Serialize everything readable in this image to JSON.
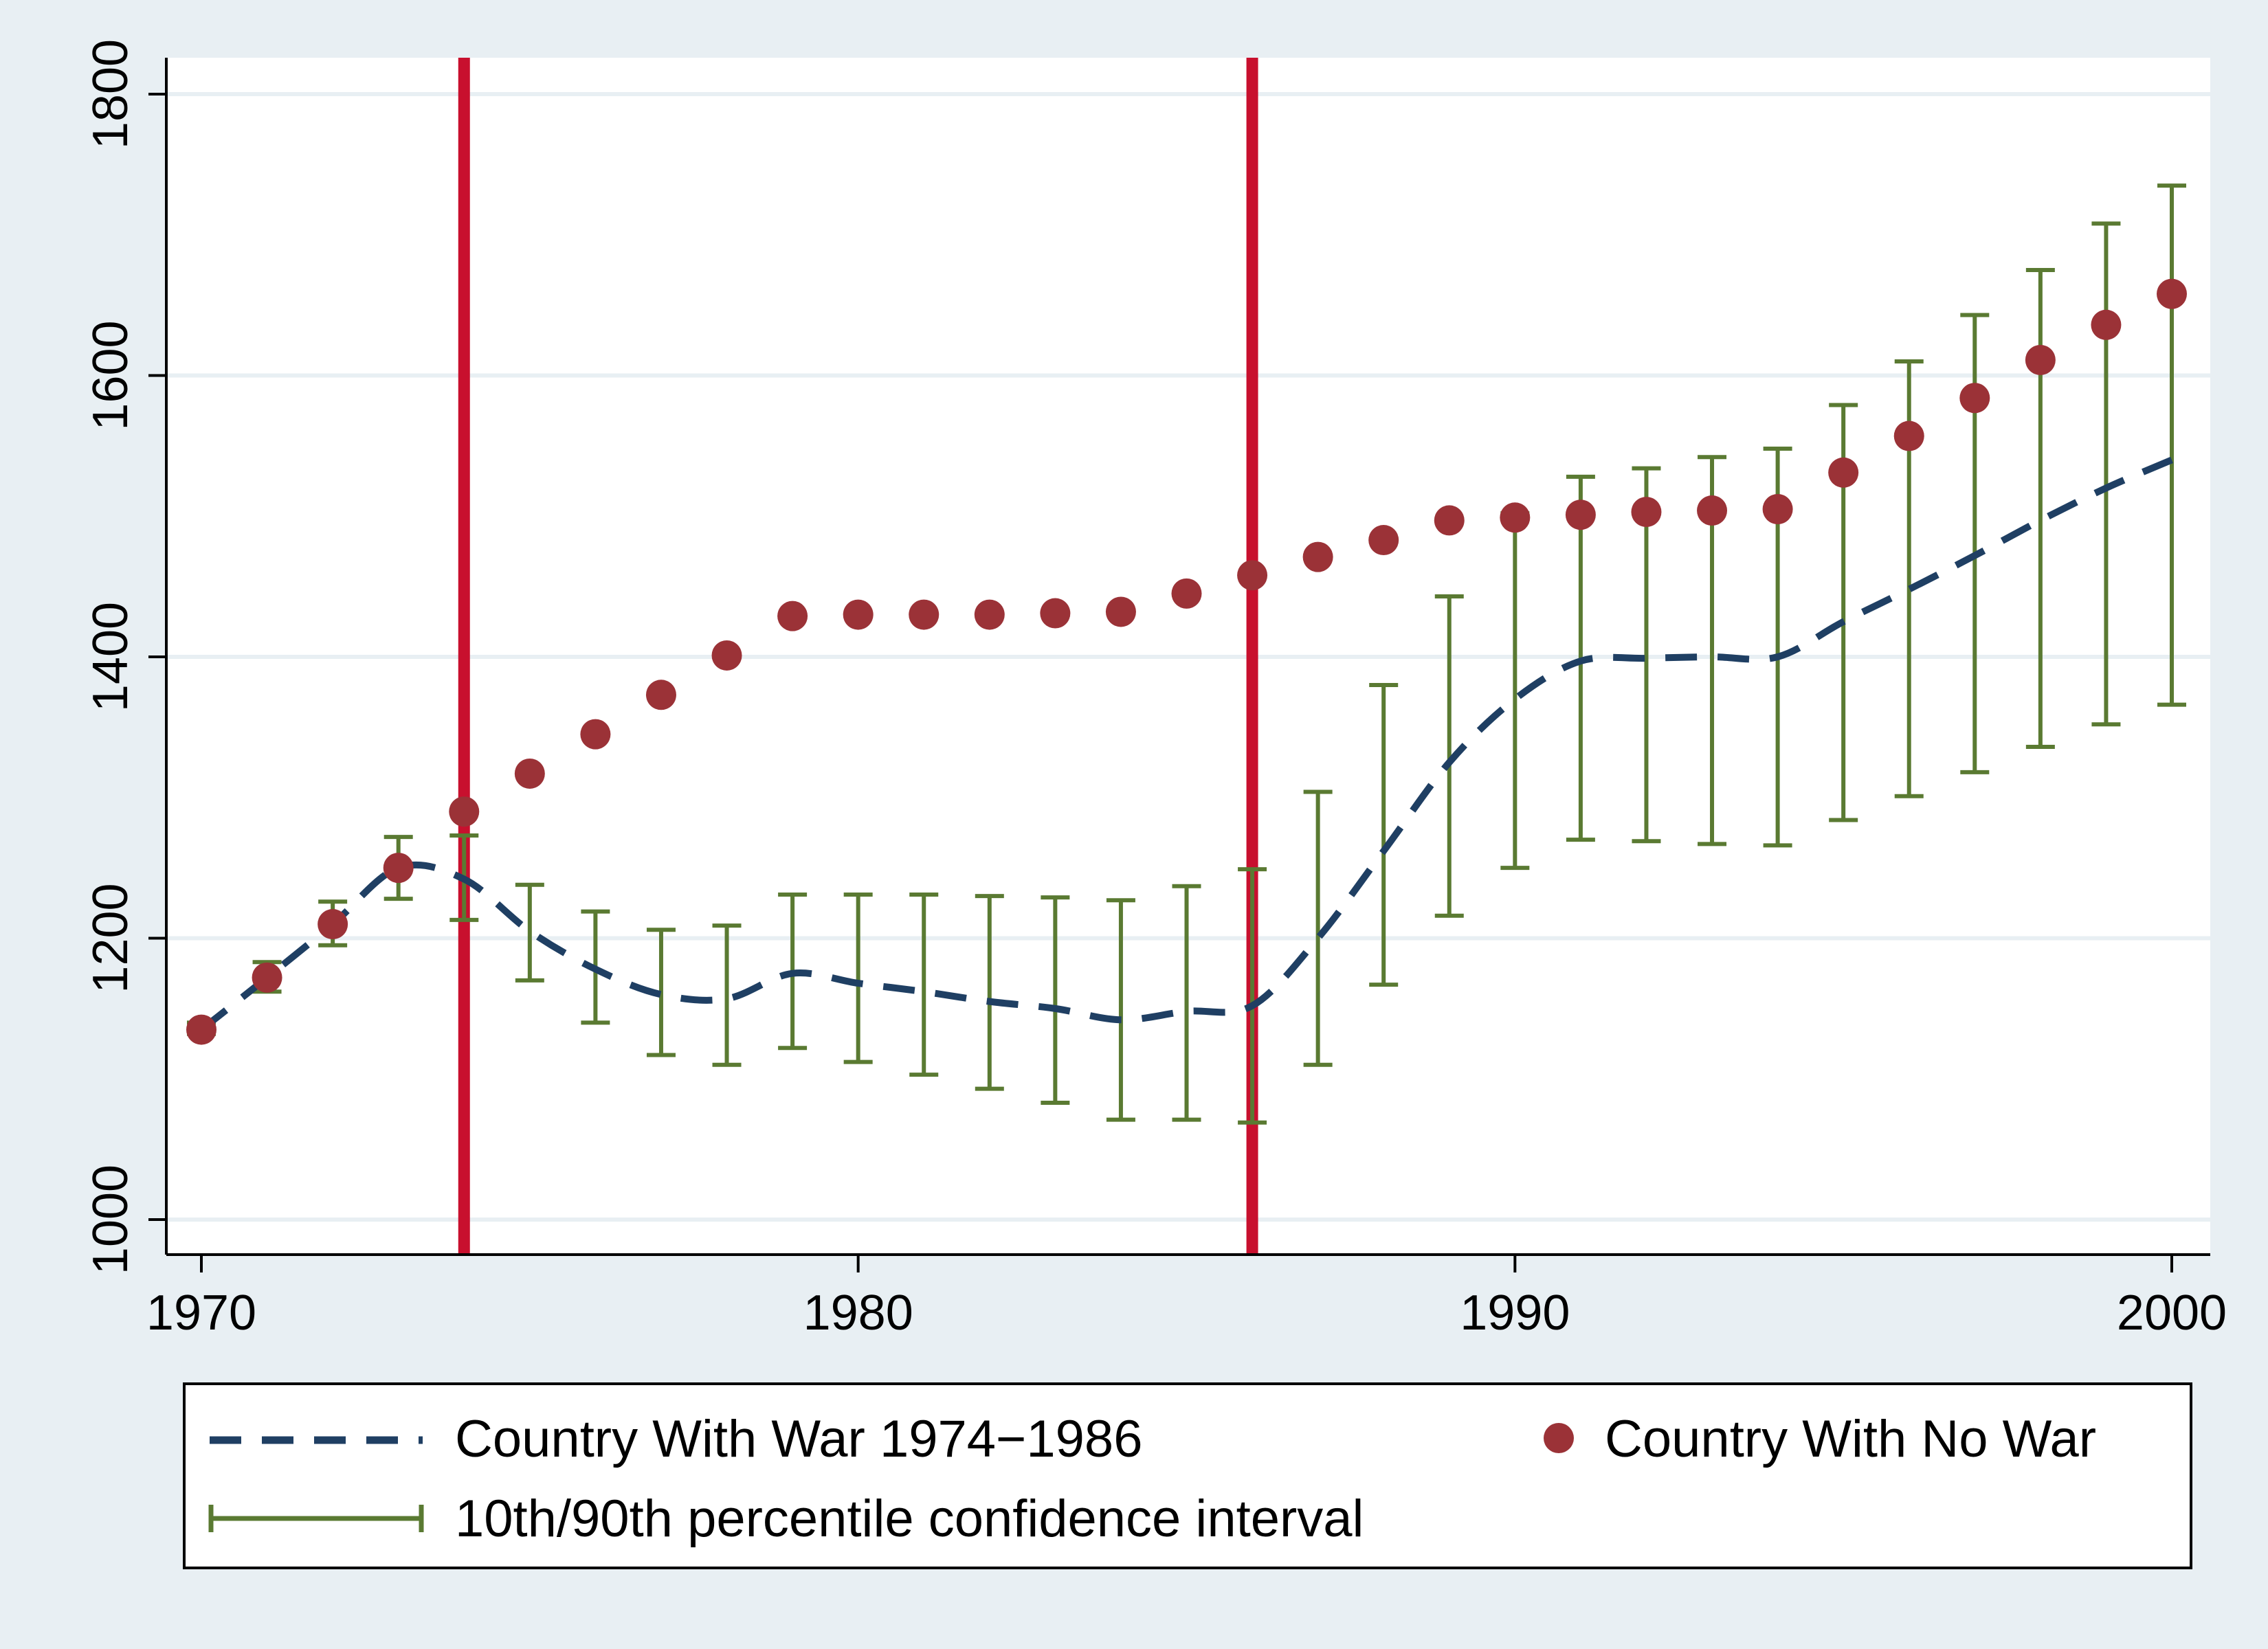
{
  "chart_data": {
    "type": "line",
    "title": "",
    "xlabel": "",
    "ylabel": "",
    "xlim": [
      1970,
      2000
    ],
    "ylim": [
      1000,
      1800
    ],
    "x_ticks": [
      "1970",
      "1980",
      "1990",
      "2000"
    ],
    "y_ticks": [
      "1000",
      "1200",
      "1400",
      "1600",
      "1800"
    ],
    "grid": true,
    "legend_position": "bottom",
    "vertical_lines": [
      1974,
      1986
    ],
    "x": [
      1970,
      1971,
      1972,
      1973,
      1974,
      1975,
      1976,
      1977,
      1978,
      1979,
      1980,
      1981,
      1982,
      1983,
      1984,
      1985,
      1986,
      1987,
      1988,
      1989,
      1990,
      1991,
      1992,
      1993,
      1994,
      1995,
      1996,
      1997,
      1998,
      1999,
      2000
    ],
    "series": [
      {
        "name": "Country With War 1974−1986",
        "style": "dashed-line",
        "color": "#1f3f63",
        "values": [
          1135,
          1172,
          1210,
          1250,
          1242,
          1205,
          1178,
          1160,
          1157,
          1175,
          1168,
          1162,
          1155,
          1150,
          1142,
          1148,
          1152,
          1200,
          1262,
          1325,
          1370,
          1397,
          1399,
          1400,
          1400,
          1425,
          1448,
          1472,
          1497,
          1520,
          1540
        ]
      },
      {
        "name": "Country With No War",
        "style": "dots",
        "color": "#9b3237",
        "values": [
          1135,
          1172,
          1210,
          1250,
          1290,
          1317,
          1345,
          1373,
          1401,
          1429,
          1430,
          1430,
          1430,
          1431,
          1432,
          1445,
          1458,
          1471,
          1483,
          1497,
          1499,
          1501,
          1503,
          1504,
          1505,
          1531,
          1557,
          1584,
          1611,
          1636,
          1658
        ]
      },
      {
        "name": "10th/90th percentile confidence interval",
        "style": "error-bars",
        "color": "#5a7a32",
        "low": [
          1132,
          1162,
          1195,
          1228,
          1213,
          1170,
          1140,
          1117,
          1110,
          1122,
          1112,
          1103,
          1093,
          1083,
          1071,
          1071,
          1069,
          1110,
          1167,
          1216,
          1250,
          1270,
          1269,
          1267,
          1266,
          1284,
          1301,
          1318,
          1336,
          1352,
          1366
        ],
        "high": [
          1140,
          1183,
          1226,
          1272,
          1273,
          1238,
          1219,
          1206,
          1209,
          1231,
          1231,
          1231,
          1230,
          1229,
          1227,
          1237,
          1249,
          1304,
          1380,
          1443,
          1502,
          1528,
          1534,
          1542,
          1548,
          1579,
          1610,
          1643,
          1675,
          1708,
          1735
        ]
      }
    ]
  },
  "legend": {
    "war_label": "Country With War 1974−1986",
    "nowar_label": "Country With No War",
    "ci_label": "10th/90th percentile confidence interval"
  },
  "colors": {
    "background": "#e8eff3",
    "plot_background": "#ffffff",
    "gridline": "#e8eff3",
    "war_line": "#1f3f63",
    "nowar_dots": "#9b3237",
    "ci_bars": "#5a7a32",
    "event_lines": "#c8102e"
  }
}
